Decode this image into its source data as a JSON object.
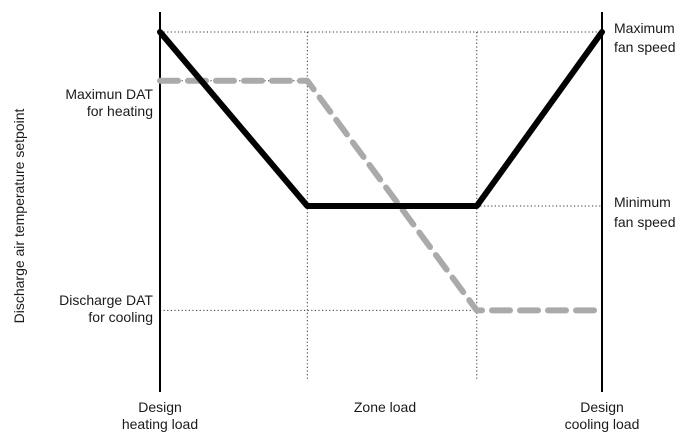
{
  "chart_data": {
    "type": "line",
    "title": "",
    "xlabel": "Zone load",
    "ylabel": "Discharge air temperature setpoint",
    "x_ticks": [
      {
        "line1": "Design",
        "line2": "heating load"
      },
      {
        "line1": "Design",
        "line2": "cooling load"
      }
    ],
    "left_labels": [
      {
        "line1": "Maximun DAT",
        "line2": "for heating"
      },
      {
        "line1": "Discharge DAT",
        "line2": "for cooling"
      }
    ],
    "right_labels": [
      {
        "line1": "Maximum",
        "line2": "fan speed"
      },
      {
        "line1": "Minimum",
        "line2": "fan speed"
      }
    ],
    "x_range": [
      0,
      3
    ],
    "y_range": [
      0,
      10
    ],
    "grid": "dotted",
    "series": [
      {
        "style": "solid",
        "color": "#000000",
        "x": [
          0,
          1,
          2.15,
          3
        ],
        "y": [
          10,
          5,
          5,
          10
        ]
      },
      {
        "style": "dashed",
        "color": "#aaaaaa",
        "x": [
          0,
          1,
          2.15,
          3
        ],
        "y": [
          8.6,
          8.6,
          2,
          2
        ]
      }
    ]
  }
}
